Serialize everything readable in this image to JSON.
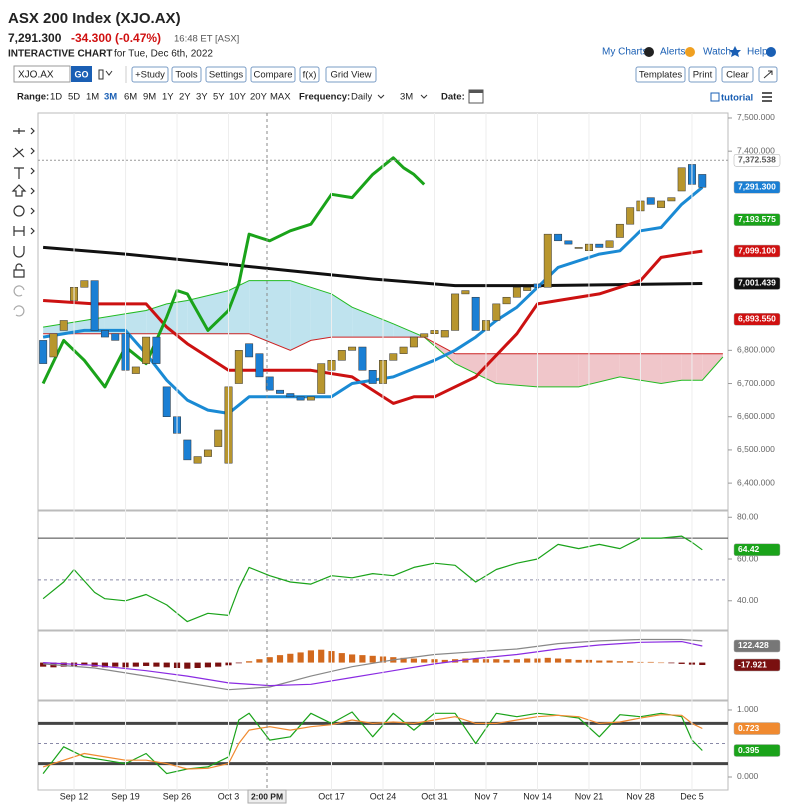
{
  "header": {
    "title": "ASX 200 Index (XJO.AX)",
    "price": "7,291.300",
    "change": "-34.300 (-0.47%)",
    "time": "16:48 ET [ASX]",
    "subtitle_bold": "INTERACTIVE CHART",
    "subtitle": "for Tue, Dec 6th, 2022",
    "links": [
      "My Charts",
      "Alerts",
      "Watch",
      "Help"
    ]
  },
  "toolbar": {
    "symbol": "XJO.AX",
    "go": "GO",
    "buttons": [
      "+Study",
      "Tools",
      "Settings",
      "Compare",
      "f(x)",
      "Grid View"
    ],
    "right_buttons": [
      "Templates",
      "Print",
      "Clear"
    ]
  },
  "range_bar": {
    "label": "Range:",
    "options": [
      "1D",
      "5D",
      "1M",
      "3M",
      "6M",
      "9M",
      "1Y",
      "2Y",
      "3Y",
      "5Y",
      "10Y",
      "20Y",
      "MAX"
    ],
    "selected": "3M",
    "frequency_label": "Frequency:",
    "frequency": "Daily",
    "period": "3M",
    "date_label": "Date:",
    "tutorial": "tutorial"
  },
  "chart_data": [
    {
      "type": "candlestick",
      "xlim": [
        -0.5,
        66.5
      ],
      "ylim": [
        6319,
        7515
      ],
      "yticks": [
        {
          "value": 7500,
          "label": "7,500.000"
        },
        {
          "value": 7400,
          "label": "7,400.000"
        },
        {
          "value": 6800,
          "label": "6,800.000"
        },
        {
          "value": 6700,
          "label": "6,700.000"
        },
        {
          "value": 6600,
          "label": "6,600.000"
        },
        {
          "value": 6500,
          "label": "6,500.000"
        },
        {
          "value": 6400,
          "label": "6,400.000"
        }
      ],
      "up_color": "#b8962e",
      "down_color": "#1a7fd4",
      "opens": [
        6830,
        6780,
        6860,
        6950,
        6990,
        7010,
        6860,
        6850,
        6850,
        6730,
        6760,
        6840,
        6690,
        6600,
        6530,
        6460,
        6480,
        6510,
        6460,
        6700,
        6820,
        6790,
        6720,
        6680,
        6670,
        6660,
        6650,
        6670,
        6740,
        6770,
        6800,
        6810,
        6740,
        6700,
        6770,
        6790,
        6810,
        6840,
        6850,
        6840,
        6860,
        6970,
        6960,
        6860,
        6890,
        6940,
        6960,
        6980,
        7000,
        6990,
        7150,
        7130,
        7110,
        7100,
        7120,
        7110,
        7140,
        7180,
        7220,
        7260,
        7230,
        7250,
        7280,
        7360,
        7330
      ],
      "closes": [
        6760,
        6850,
        6890,
        6990,
        7010,
        6860,
        6840,
        6830,
        6740,
        6750,
        6840,
        6760,
        6600,
        6550,
        6470,
        6480,
        6500,
        6560,
        6690,
        6800,
        6780,
        6720,
        6680,
        6670,
        6660,
        6650,
        6660,
        6760,
        6770,
        6800,
        6810,
        6740,
        6700,
        6770,
        6790,
        6810,
        6840,
        6850,
        6860,
        6860,
        6970,
        6980,
        6860,
        6890,
        6940,
        6960,
        6990,
        6990,
        6990,
        7150,
        7130,
        7120,
        7110,
        7120,
        7110,
        7130,
        7180,
        7230,
        7250,
        7240,
        7250,
        7260,
        7350,
        7300,
        7291.3
      ],
      "cloud": {
        "x": [
          0,
          6,
          10,
          12,
          14,
          18,
          20,
          24,
          26,
          28,
          30,
          34,
          37,
          40,
          44,
          48,
          52,
          56,
          60,
          62,
          64,
          66
        ],
        "span_a": [
          6870,
          6900,
          6920,
          6940,
          6950,
          6980,
          7010,
          7010,
          6990,
          6970,
          6930,
          6880,
          6840,
          6760,
          6700,
          6690,
          6690,
          6720,
          6700,
          6710,
          6710,
          6780
        ],
        "span_b": [
          6850,
          6850,
          6850,
          6850,
          6850,
          6850,
          6850,
          6800,
          6830,
          6840,
          6840,
          6840,
          6840,
          6790,
          6790,
          6790,
          6790,
          6790,
          6790,
          6790,
          6790,
          6790
        ],
        "colors": [
          "#bfe3ee",
          "#f0c6ca"
        ],
        "line_colors": [
          "#22bb22",
          "#cc2222"
        ]
      },
      "series": [
        {
          "color": "#111111",
          "width": 3,
          "x": [
            0,
            8,
            16,
            24,
            32,
            40,
            48,
            56,
            64
          ],
          "values": [
            7110,
            7090,
            7065,
            7040,
            7015,
            6995,
            6995,
            6998,
            7001.439
          ]
        },
        {
          "color": "#cc1111",
          "width": 3,
          "x": [
            0,
            5,
            10,
            12,
            14,
            18,
            22,
            26,
            30,
            34,
            36,
            38,
            42,
            46,
            48,
            50,
            54,
            58,
            60,
            62,
            64
          ],
          "values": [
            6950,
            6940,
            6940,
            6870,
            6820,
            6740,
            6740,
            6740,
            6720,
            6640,
            6660,
            6660,
            6720,
            6850,
            6940,
            6950,
            6970,
            7010,
            7080,
            7090,
            7099.1
          ]
        },
        {
          "color": "#1a8ad4",
          "width": 3,
          "x": [
            0,
            4,
            8,
            10,
            12,
            14,
            16,
            18,
            20,
            24,
            28,
            30,
            34,
            38,
            40,
            42,
            44,
            46,
            48,
            50,
            54,
            56,
            58,
            60,
            62,
            64
          ],
          "values": [
            6840,
            6860,
            6860,
            6790,
            6710,
            6650,
            6620,
            6610,
            6660,
            6660,
            6660,
            6700,
            6720,
            6770,
            6800,
            6840,
            6890,
            6930,
            6990,
            7050,
            7090,
            7100,
            7160,
            7170,
            7240,
            7291.3
          ]
        },
        {
          "color": "#1aa31a",
          "width": 3,
          "x": [
            0,
            2,
            4,
            6,
            8,
            10,
            12,
            13,
            14,
            16,
            18,
            19,
            20,
            22,
            24,
            26,
            28,
            30,
            32,
            34,
            35,
            36,
            37
          ],
          "values": [
            6700,
            6830,
            6770,
            6690,
            6810,
            6760,
            6900,
            6980,
            6970,
            6860,
            6920,
            7000,
            7150,
            7130,
            7160,
            7180,
            7270,
            7260,
            7330,
            7380,
            7350,
            7330,
            7300
          ]
        }
      ],
      "last_values": [
        {
          "value": 7372.538,
          "label": "7,372.538",
          "color": "#ffffff",
          "text_color": "#555555",
          "line": "dashed"
        },
        {
          "value": 7291.3,
          "label": "7,291.300",
          "color": "#1a7fd4",
          "text_color": "#ffffff"
        },
        {
          "value": 7193.575,
          "label": "7,193.575",
          "color": "#1aa31a",
          "text_color": "#ffffff"
        },
        {
          "value": 7099.1,
          "label": "7,099.100",
          "color": "#d01010",
          "text_color": "#ffffff"
        },
        {
          "value": 7001.439,
          "label": "7,001.439",
          "color": "#111111",
          "text_color": "#ffffff"
        },
        {
          "value": 6893.55,
          "label": "6,893.550",
          "color": "#d01010",
          "text_color": "#ffffff"
        }
      ]
    },
    {
      "type": "line",
      "ylim": [
        26,
        83
      ],
      "yticks": [
        {
          "value": 80,
          "label": "80.00"
        },
        {
          "value": 60,
          "label": "60.00"
        },
        {
          "value": 40,
          "label": "40.00"
        }
      ],
      "levels": [
        {
          "value": 70,
          "style": "solid"
        },
        {
          "value": 50,
          "style": "dashed"
        }
      ],
      "series": [
        {
          "color": "#1aa31a",
          "width": 1.2,
          "x": [
            0,
            2,
            3,
            5,
            6,
            8,
            10,
            12,
            14,
            16,
            18,
            19,
            20,
            22,
            24,
            26,
            28,
            30,
            32,
            34,
            36,
            38,
            40,
            42,
            44,
            46,
            48,
            50,
            52,
            54,
            56,
            58,
            60,
            62,
            63,
            64
          ],
          "values": [
            41,
            49,
            55,
            44,
            41,
            40,
            43,
            38,
            30,
            34,
            33,
            46,
            56,
            52,
            49,
            48,
            52,
            51,
            53,
            52,
            56,
            58,
            57,
            49,
            55,
            58,
            60,
            67,
            65,
            67,
            65,
            70,
            70,
            71,
            68,
            64.42
          ]
        }
      ],
      "last_values": [
        {
          "value": 64.42,
          "label": "64.42",
          "color": "#1aa31a",
          "text_color": "#ffffff"
        }
      ]
    },
    {
      "type": "combo",
      "ylim": [
        -276,
        233
      ],
      "histogram": {
        "values": [
          -30,
          -35,
          -30,
          -25,
          -20,
          -30,
          -35,
          -30,
          -35,
          -30,
          -25,
          -30,
          -35,
          -40,
          -45,
          -40,
          -35,
          -30,
          -20,
          -5,
          10,
          25,
          40,
          55,
          65,
          75,
          90,
          95,
          85,
          70,
          60,
          55,
          50,
          45,
          40,
          35,
          30,
          25,
          25,
          20,
          25,
          30,
          30,
          25,
          25,
          20,
          25,
          30,
          30,
          35,
          30,
          25,
          20,
          20,
          15,
          15,
          10,
          10,
          5,
          5,
          0,
          -5,
          -10,
          -15,
          -17.921
        ],
        "colors": [
          "#d2691e",
          "#7a1010"
        ]
      },
      "series": [
        {
          "color": "#888888",
          "width": 1.2,
          "x": [
            0,
            5,
            10,
            14,
            18,
            22,
            26,
            30,
            34,
            38,
            42,
            46,
            50,
            54,
            58,
            62,
            64
          ],
          "values": [
            -10,
            -40,
            -100,
            -150,
            -200,
            -180,
            -100,
            -30,
            20,
            60,
            80,
            100,
            140,
            160,
            170,
            170,
            160
          ]
        },
        {
          "color": "#8a2be2",
          "width": 1.2,
          "x": [
            0,
            5,
            10,
            14,
            18,
            22,
            26,
            30,
            34,
            38,
            42,
            46,
            50,
            54,
            58,
            62,
            64
          ],
          "values": [
            0,
            -20,
            -60,
            -100,
            -150,
            -170,
            -160,
            -110,
            -60,
            -10,
            30,
            60,
            100,
            130,
            150,
            155,
            122.428
          ]
        }
      ],
      "last_values": [
        {
          "value": 122.428,
          "label": "122.428",
          "color": "#777777",
          "text_color": "#ffffff"
        },
        {
          "value": -17.921,
          "label": "-17.921",
          "color": "#7a1010",
          "text_color": "#ffffff"
        }
      ]
    },
    {
      "type": "line",
      "ylim": [
        -0.194,
        1.134
      ],
      "yticks": [
        {
          "value": 1,
          "label": "1.000"
        },
        {
          "value": 0,
          "label": "0.000"
        }
      ],
      "levels": [
        {
          "value": 0.8,
          "style": "thick"
        },
        {
          "value": 0.2,
          "style": "thick"
        },
        {
          "value": 0.5,
          "style": "dashed"
        }
      ],
      "series": [
        {
          "color": "#1aa31a",
          "width": 1.2,
          "x": [
            0,
            2,
            4,
            6,
            8,
            10,
            12,
            14,
            16,
            18,
            19,
            20,
            22,
            24,
            26,
            28,
            30,
            32,
            34,
            36,
            38,
            40,
            42,
            44,
            46,
            48,
            50,
            52,
            54,
            56,
            58,
            60,
            62,
            63,
            64
          ],
          "values": [
            0.05,
            0.45,
            0.3,
            0.25,
            0.2,
            0.35,
            0.05,
            0.12,
            0.15,
            0.3,
            0.85,
            0.95,
            0.55,
            0.6,
            0.95,
            0.8,
            0.97,
            0.6,
            0.95,
            0.7,
            0.95,
            0.95,
            0.5,
            0.95,
            0.9,
            0.95,
            0.92,
            0.88,
            0.6,
            0.93,
            0.9,
            0.95,
            0.9,
            0.55,
            0.395
          ]
        },
        {
          "color": "#f08a30",
          "width": 1.2,
          "x": [
            0,
            2,
            4,
            6,
            8,
            10,
            12,
            14,
            16,
            18,
            19,
            20,
            22,
            24,
            26,
            28,
            30,
            32,
            34,
            36,
            38,
            40,
            42,
            44,
            46,
            48,
            50,
            52,
            54,
            56,
            58,
            60,
            62,
            63,
            64
          ],
          "values": [
            0.15,
            0.25,
            0.35,
            0.3,
            0.25,
            0.25,
            0.2,
            0.12,
            0.13,
            0.2,
            0.5,
            0.7,
            0.75,
            0.7,
            0.75,
            0.78,
            0.85,
            0.8,
            0.82,
            0.8,
            0.85,
            0.9,
            0.8,
            0.8,
            0.85,
            0.9,
            0.92,
            0.9,
            0.8,
            0.82,
            0.88,
            0.93,
            0.92,
            0.8,
            0.723
          ]
        }
      ],
      "last_values": [
        {
          "value": 0.723,
          "label": "0.723",
          "color": "#f08a30",
          "text_color": "#ffffff"
        },
        {
          "value": 0.395,
          "label": "0.395",
          "color": "#1aa31a",
          "text_color": "#ffffff"
        }
      ],
      "xticks": [
        {
          "value": 3,
          "label": "Sep 12"
        },
        {
          "value": 8,
          "label": "Sep 19"
        },
        {
          "value": 13,
          "label": "Sep 26"
        },
        {
          "value": 18,
          "label": "Oct 3"
        },
        {
          "value": 28,
          "label": "Oct 17"
        },
        {
          "value": 33,
          "label": "Oct 24"
        },
        {
          "value": 38,
          "label": "Oct 31"
        },
        {
          "value": 43,
          "label": "Nov 7"
        },
        {
          "value": 48,
          "label": "Nov 14"
        },
        {
          "value": 53,
          "label": "Nov 21"
        },
        {
          "value": 58,
          "label": "Nov 28"
        },
        {
          "value": 63,
          "label": "Dec 5"
        }
      ],
      "crosshair_label": "2:00 PM"
    }
  ]
}
